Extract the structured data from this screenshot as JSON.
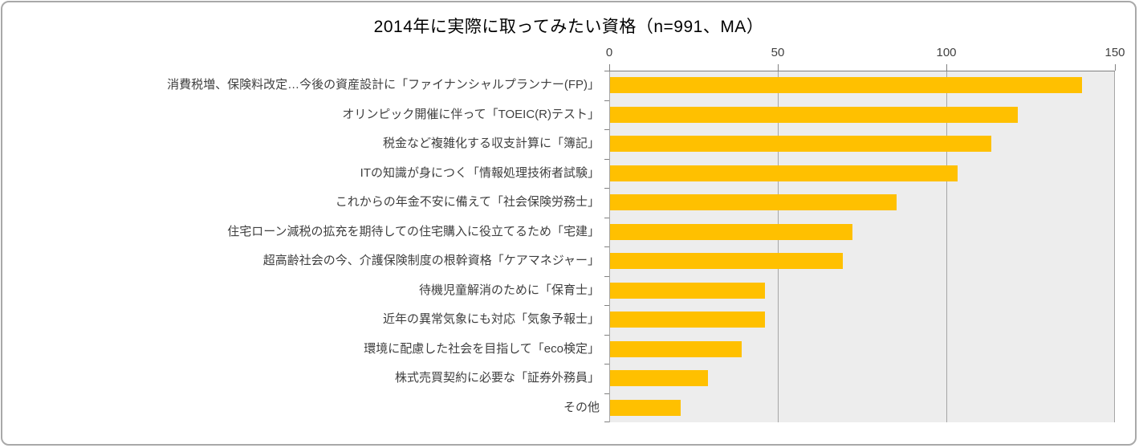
{
  "chart_data": {
    "type": "bar",
    "orientation": "horizontal",
    "title": "2014年に実際に取ってみたい資格（n=991、MA）",
    "categories": [
      "消費税増、保険料改定…今後の資産設計に「ファイナンシャルプランナー(FP)」",
      "オリンピック開催に伴って「TOEIC(R)テスト」",
      "税金など複雑化する収支計算に「簿記」",
      "ITの知識が身につく「情報処理技術者試験」",
      "これからの年金不安に備えて「社会保険労務士」",
      "住宅ローン減税の拡充を期待しての住宅購入に役立てるため「宅建」",
      "超高齢社会の今、介護保険制度の根幹資格「ケアマネジャー」",
      "待機児童解消のために「保育士」",
      "近年の異常気象にも対応「気象予報士」",
      "環境に配慮した社会を目指して「eco検定」",
      "株式売買契約に必要な「証券外務員」",
      "その他"
    ],
    "values": [
      140,
      121,
      113,
      103,
      85,
      72,
      69,
      46,
      46,
      39,
      29,
      21
    ],
    "xlabel": "",
    "ylabel": "",
    "xlim": [
      0,
      150
    ],
    "x_ticks": [
      0,
      50,
      100,
      150
    ],
    "axis_position": "top",
    "grid": "vertical",
    "legend": "none",
    "bar_color": "#FFC000",
    "plot_bg_color": "#EDEDED",
    "gridline_color": "#A6A6A6",
    "axis_line_color": "#808080",
    "title_color": "#000000",
    "label_color": "#3F3F3F"
  }
}
